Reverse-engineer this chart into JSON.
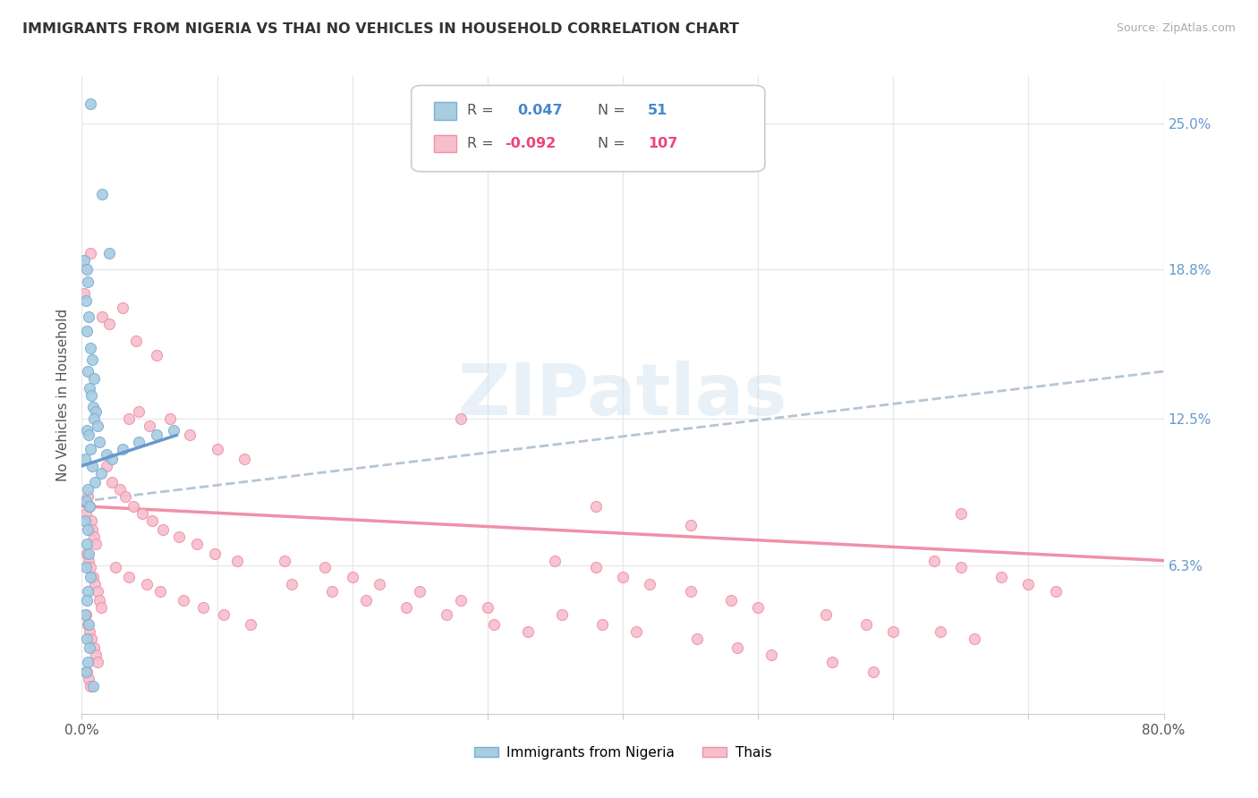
{
  "title": "IMMIGRANTS FROM NIGERIA VS THAI NO VEHICLES IN HOUSEHOLD CORRELATION CHART",
  "source": "Source: ZipAtlas.com",
  "ylabel": "No Vehicles in Household",
  "ylabel_right_ticks": [
    "6.3%",
    "12.5%",
    "18.8%",
    "25.0%"
  ],
  "ylabel_right_values": [
    6.3,
    12.5,
    18.8,
    25.0
  ],
  "x_min": 0.0,
  "x_max": 80.0,
  "y_min": 0.0,
  "y_max": 27.0,
  "watermark": "ZIPatlas",
  "color_nigeria": "#a8cce0",
  "color_thais": "#f7bfcc",
  "border_nigeria": "#7bafd4",
  "border_thais": "#f090a8",
  "trendline_nigeria_color": "#6699cc",
  "trendline_thais_color": "#f090a8",
  "nigeria_trend": {
    "x_start": 0.0,
    "x_end": 7.0,
    "y_start": 10.5,
    "y_end": 11.8
  },
  "thais_trend": {
    "x_start": 0.0,
    "x_end": 80.0,
    "y_start": 9.0,
    "y_end": 14.5
  },
  "thais_trend_pink": {
    "x_start": 0.0,
    "x_end": 80.0,
    "y_start": 8.8,
    "y_end": 6.5
  },
  "grid_color": "#e8e8e8",
  "background_color": "#ffffff",
  "nigeria_scatter": [
    [
      0.15,
      19.2
    ],
    [
      0.35,
      18.8
    ],
    [
      0.45,
      18.3
    ],
    [
      0.28,
      17.5
    ],
    [
      0.52,
      16.8
    ],
    [
      0.38,
      16.2
    ],
    [
      0.62,
      15.5
    ],
    [
      0.75,
      15.0
    ],
    [
      0.42,
      14.5
    ],
    [
      0.88,
      14.2
    ],
    [
      0.55,
      13.8
    ],
    [
      0.68,
      13.5
    ],
    [
      0.82,
      13.0
    ],
    [
      1.05,
      12.8
    ],
    [
      0.92,
      12.5
    ],
    [
      1.18,
      12.2
    ],
    [
      0.35,
      12.0
    ],
    [
      0.48,
      11.8
    ],
    [
      1.32,
      11.5
    ],
    [
      0.65,
      11.2
    ],
    [
      0.22,
      10.8
    ],
    [
      0.78,
      10.5
    ],
    [
      1.45,
      10.2
    ],
    [
      0.95,
      9.8
    ],
    [
      0.42,
      9.5
    ],
    [
      0.32,
      9.0
    ],
    [
      0.58,
      8.8
    ],
    [
      0.25,
      8.2
    ],
    [
      0.45,
      7.8
    ],
    [
      0.38,
      7.2
    ],
    [
      0.52,
      6.8
    ],
    [
      0.28,
      6.2
    ],
    [
      0.65,
      5.8
    ],
    [
      0.42,
      5.2
    ],
    [
      0.35,
      4.8
    ],
    [
      0.22,
      4.2
    ],
    [
      0.48,
      3.8
    ],
    [
      0.35,
      3.2
    ],
    [
      0.55,
      2.8
    ],
    [
      0.42,
      2.2
    ],
    [
      0.28,
      1.8
    ],
    [
      1.8,
      11.0
    ],
    [
      2.2,
      10.8
    ],
    [
      3.0,
      11.2
    ],
    [
      4.2,
      11.5
    ],
    [
      5.5,
      11.8
    ],
    [
      6.8,
      12.0
    ],
    [
      0.62,
      25.8
    ],
    [
      1.5,
      22.0
    ],
    [
      2.0,
      19.5
    ],
    [
      0.85,
      1.2
    ]
  ],
  "thais_scatter": [
    [
      0.18,
      17.8
    ],
    [
      0.32,
      8.5
    ],
    [
      0.45,
      9.2
    ],
    [
      0.55,
      8.8
    ],
    [
      0.68,
      8.2
    ],
    [
      0.78,
      7.8
    ],
    [
      0.92,
      7.5
    ],
    [
      1.05,
      7.2
    ],
    [
      0.38,
      6.8
    ],
    [
      0.52,
      6.5
    ],
    [
      0.65,
      6.2
    ],
    [
      0.82,
      5.8
    ],
    [
      0.95,
      5.5
    ],
    [
      1.18,
      5.2
    ],
    [
      1.32,
      4.8
    ],
    [
      1.45,
      4.5
    ],
    [
      0.28,
      4.2
    ],
    [
      0.42,
      3.8
    ],
    [
      0.58,
      3.5
    ],
    [
      0.72,
      3.2
    ],
    [
      0.88,
      2.8
    ],
    [
      1.02,
      2.5
    ],
    [
      1.15,
      2.2
    ],
    [
      0.35,
      1.8
    ],
    [
      0.48,
      1.5
    ],
    [
      0.62,
      1.2
    ],
    [
      1.8,
      10.5
    ],
    [
      2.2,
      9.8
    ],
    [
      2.8,
      9.5
    ],
    [
      3.2,
      9.2
    ],
    [
      3.8,
      8.8
    ],
    [
      4.5,
      8.5
    ],
    [
      5.2,
      8.2
    ],
    [
      6.0,
      7.8
    ],
    [
      7.2,
      7.5
    ],
    [
      8.5,
      7.2
    ],
    [
      9.8,
      6.8
    ],
    [
      11.5,
      6.5
    ],
    [
      2.5,
      6.2
    ],
    [
      3.5,
      5.8
    ],
    [
      4.8,
      5.5
    ],
    [
      5.8,
      5.2
    ],
    [
      7.5,
      4.8
    ],
    [
      9.0,
      4.5
    ],
    [
      10.5,
      4.2
    ],
    [
      12.5,
      3.8
    ],
    [
      1.5,
      16.8
    ],
    [
      2.0,
      16.5
    ],
    [
      3.0,
      17.2
    ],
    [
      4.0,
      15.8
    ],
    [
      5.5,
      15.2
    ],
    [
      3.5,
      12.5
    ],
    [
      4.2,
      12.8
    ],
    [
      5.0,
      12.2
    ],
    [
      6.5,
      12.5
    ],
    [
      8.0,
      11.8
    ],
    [
      10.0,
      11.2
    ],
    [
      12.0,
      10.8
    ],
    [
      15.0,
      6.5
    ],
    [
      18.0,
      6.2
    ],
    [
      20.0,
      5.8
    ],
    [
      22.0,
      5.5
    ],
    [
      25.0,
      5.2
    ],
    [
      28.0,
      4.8
    ],
    [
      30.0,
      4.5
    ],
    [
      15.5,
      5.5
    ],
    [
      18.5,
      5.2
    ],
    [
      21.0,
      4.8
    ],
    [
      24.0,
      4.5
    ],
    [
      27.0,
      4.2
    ],
    [
      30.5,
      3.8
    ],
    [
      33.0,
      3.5
    ],
    [
      35.0,
      6.5
    ],
    [
      38.0,
      6.2
    ],
    [
      40.0,
      5.8
    ],
    [
      42.0,
      5.5
    ],
    [
      35.5,
      4.2
    ],
    [
      38.5,
      3.8
    ],
    [
      41.0,
      3.5
    ],
    [
      45.0,
      5.2
    ],
    [
      48.0,
      4.8
    ],
    [
      50.0,
      4.5
    ],
    [
      45.5,
      3.2
    ],
    [
      48.5,
      2.8
    ],
    [
      51.0,
      2.5
    ],
    [
      55.0,
      4.2
    ],
    [
      58.0,
      3.8
    ],
    [
      60.0,
      3.5
    ],
    [
      55.5,
      2.2
    ],
    [
      58.5,
      1.8
    ],
    [
      63.0,
      6.5
    ],
    [
      65.0,
      6.2
    ],
    [
      68.0,
      5.8
    ],
    [
      63.5,
      3.5
    ],
    [
      66.0,
      3.2
    ],
    [
      70.0,
      5.5
    ],
    [
      72.0,
      5.2
    ],
    [
      45.0,
      8.0
    ],
    [
      65.0,
      8.5
    ],
    [
      38.0,
      8.8
    ],
    [
      28.0,
      12.5
    ],
    [
      0.62,
      19.5
    ]
  ]
}
